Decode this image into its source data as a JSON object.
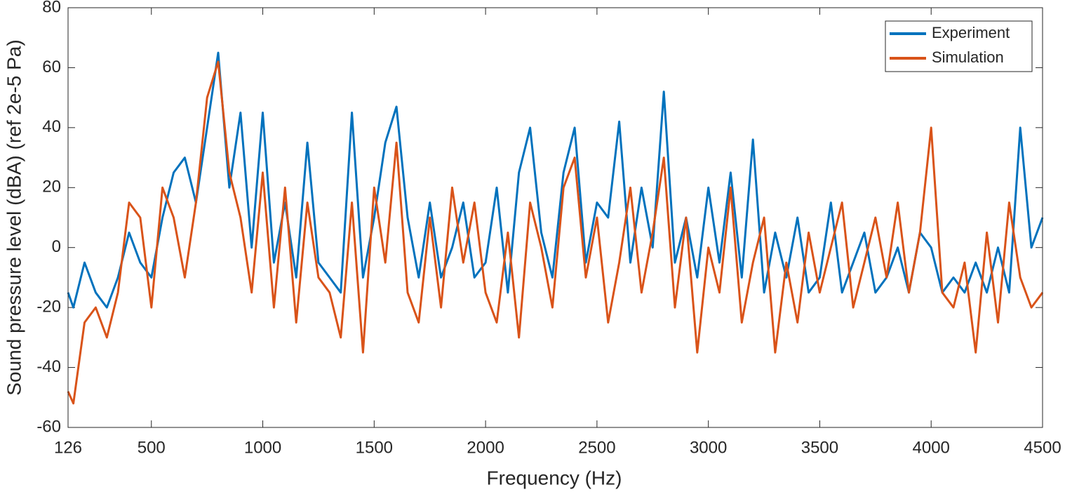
{
  "chart_data": {
    "type": "line",
    "xlabel": "Frequency (Hz)",
    "ylabel": "Sound pressure level (dBA) (ref 2e-5 Pa)",
    "x": [
      126,
      150,
      200,
      250,
      300,
      350,
      400,
      450,
      500,
      550,
      600,
      650,
      700,
      750,
      800,
      850,
      900,
      950,
      1000,
      1050,
      1100,
      1150,
      1200,
      1250,
      1300,
      1350,
      1400,
      1450,
      1500,
      1550,
      1600,
      1650,
      1700,
      1750,
      1800,
      1850,
      1900,
      1950,
      2000,
      2050,
      2100,
      2150,
      2200,
      2250,
      2300,
      2350,
      2400,
      2450,
      2500,
      2550,
      2600,
      2650,
      2700,
      2750,
      2800,
      2850,
      2900,
      2950,
      3000,
      3050,
      3100,
      3150,
      3200,
      3250,
      3300,
      3350,
      3400,
      3450,
      3500,
      3550,
      3600,
      3650,
      3700,
      3750,
      3800,
      3850,
      3900,
      3950,
      4000,
      4050,
      4100,
      4150,
      4200,
      4250,
      4300,
      4350,
      4400,
      4450,
      4500
    ],
    "series": [
      {
        "name": "Experiment",
        "color": "#0072bd",
        "values": [
          -15,
          -20,
          -5,
          -15,
          -20,
          -10,
          5,
          -5,
          -10,
          10,
          25,
          30,
          15,
          40,
          65,
          20,
          45,
          0,
          45,
          -5,
          15,
          -10,
          35,
          -5,
          -10,
          -15,
          45,
          -10,
          10,
          35,
          47,
          10,
          -10,
          15,
          -10,
          0,
          15,
          -10,
          -5,
          20,
          -15,
          25,
          40,
          5,
          -10,
          25,
          40,
          -5,
          15,
          10,
          42,
          -5,
          20,
          0,
          52,
          -5,
          10,
          -10,
          20,
          -5,
          25,
          -10,
          36,
          -15,
          5,
          -10,
          10,
          -15,
          -10,
          15,
          -15,
          -5,
          5,
          -15,
          -10,
          0,
          -15,
          5,
          0,
          -15,
          -10,
          -15,
          -5,
          -15,
          0,
          -15,
          40,
          0,
          10
        ]
      },
      {
        "name": "Simulation",
        "color": "#d95319",
        "values": [
          -48,
          -52,
          -25,
          -20,
          -30,
          -15,
          15,
          10,
          -20,
          20,
          10,
          -10,
          15,
          50,
          62,
          25,
          10,
          -15,
          25,
          -20,
          20,
          -25,
          15,
          -10,
          -15,
          -30,
          15,
          -35,
          20,
          -5,
          35,
          -15,
          -25,
          10,
          -20,
          20,
          -5,
          15,
          -15,
          -25,
          5,
          -30,
          15,
          0,
          -20,
          20,
          30,
          -10,
          10,
          -25,
          -5,
          20,
          -15,
          5,
          30,
          -20,
          10,
          -35,
          0,
          -15,
          20,
          -25,
          -5,
          10,
          -35,
          -5,
          -25,
          5,
          -15,
          0,
          15,
          -20,
          -5,
          10,
          -10,
          15,
          -15,
          5,
          40,
          -15,
          -20,
          -5,
          -35,
          5,
          -25,
          15,
          -10,
          -20,
          -15
        ]
      }
    ],
    "xlim": [
      126,
      4500
    ],
    "xticks": [
      126,
      500,
      1000,
      1500,
      2000,
      2500,
      3000,
      3500,
      4000,
      4500
    ],
    "ylim": [
      -60,
      80
    ],
    "yticks": [
      -60,
      -40,
      -20,
      0,
      20,
      40,
      60,
      80
    ],
    "grid": false,
    "legend": "upper right"
  }
}
